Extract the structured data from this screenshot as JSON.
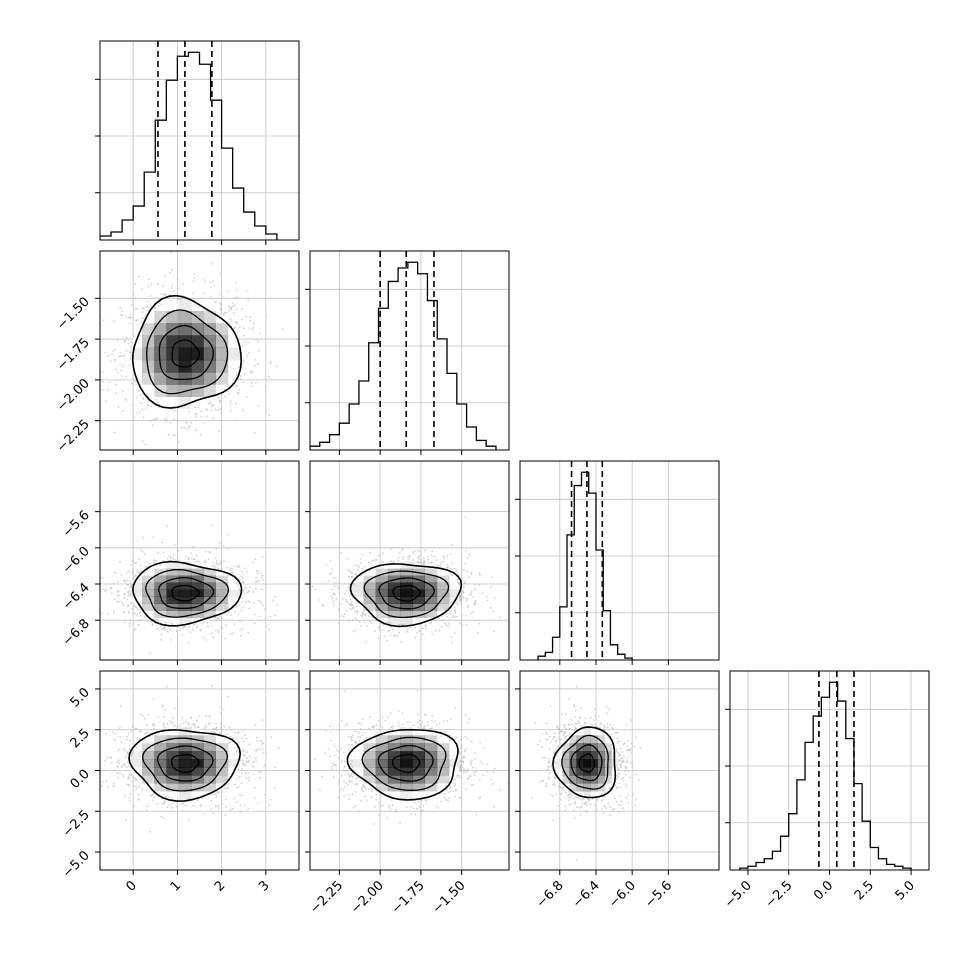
{
  "chart_data": {
    "type": "corner",
    "title": "",
    "grid": true,
    "colors": {
      "histogram": "#000000",
      "contour": "#000000",
      "density": "#000000",
      "scatter": "#bdbdbd",
      "grid": "#c0c0c0"
    },
    "parameters": [
      {
        "label": "",
        "range": [
          -0.75,
          3.75
        ],
        "tick_values": [
          0,
          1,
          2,
          3
        ],
        "tick_labels": [
          "0",
          "1",
          "2",
          "3"
        ],
        "quantiles": [
          0.56,
          1.17,
          1.78
        ],
        "histogram": {
          "edges": [
            -0.75,
            -0.5,
            -0.25,
            0.0,
            0.25,
            0.5,
            0.75,
            1.0,
            1.25,
            1.5,
            1.75,
            2.0,
            2.25,
            2.5,
            2.75,
            3.0,
            3.25
          ],
          "counts": [
            2,
            4,
            10,
            17,
            34,
            60,
            80,
            92,
            94,
            88,
            70,
            46,
            26,
            14,
            7,
            3
          ]
        }
      },
      {
        "label": "",
        "range": [
          -2.43,
          -1.21
        ],
        "tick_values": [
          -2.25,
          -2.0,
          -1.75,
          -1.5
        ],
        "tick_labels": [
          "−2.25",
          "−2.00",
          "−1.75",
          "−1.50"
        ],
        "quantiles": [
          -2.0,
          -1.84,
          -1.67
        ],
        "histogram": {
          "edges": [
            -2.43,
            -2.37,
            -2.31,
            -2.25,
            -2.19,
            -2.13,
            -2.07,
            -2.01,
            -1.95,
            -1.89,
            -1.83,
            -1.77,
            -1.71,
            -1.65,
            -1.59,
            -1.53,
            -1.47,
            -1.41,
            -1.35,
            -1.29
          ],
          "counts": [
            2,
            4,
            8,
            14,
            24,
            36,
            56,
            74,
            88,
            95,
            98,
            92,
            78,
            58,
            40,
            24,
            12,
            5,
            2
          ]
        }
      },
      {
        "label": "",
        "range": [
          -7.24,
          -5.04
        ],
        "tick_values": [
          -6.8,
          -6.4,
          -6.0,
          -5.6
        ],
        "tick_labels": [
          "−6.8",
          "−6.4",
          "−6.0",
          "−5.6"
        ],
        "quantiles": [
          -6.67,
          -6.5,
          -6.33
        ],
        "histogram": {
          "edges": [
            -7.04,
            -6.96,
            -6.88,
            -6.8,
            -6.72,
            -6.64,
            -6.56,
            -6.48,
            -6.4,
            -6.32,
            -6.24,
            -6.16,
            -6.08,
            -6.0
          ],
          "counts": [
            2,
            4,
            12,
            28,
            66,
            92,
            99,
            88,
            58,
            26,
            8,
            3,
            1
          ]
        }
      },
      {
        "label": "",
        "range": [
          -6.1,
          6.1
        ],
        "tick_values": [
          -5.0,
          -2.5,
          0.0,
          2.5,
          5.0
        ],
        "tick_labels": [
          "−5.0",
          "−2.5",
          "0.0",
          "2.5",
          "5.0"
        ],
        "quantiles": [
          -0.65,
          0.45,
          1.5
        ],
        "histogram": {
          "edges": [
            -5.5,
            -5.0,
            -4.5,
            -4.0,
            -3.5,
            -3.0,
            -2.5,
            -2.0,
            -1.5,
            -1.0,
            -0.5,
            0.0,
            0.5,
            1.0,
            1.5,
            2.0,
            2.5,
            3.0,
            3.5,
            4.0,
            4.5,
            5.0
          ],
          "counts": [
            1,
            2,
            4,
            6,
            10,
            18,
            30,
            48,
            68,
            82,
            92,
            100,
            90,
            70,
            46,
            26,
            12,
            6,
            3,
            2,
            1
          ]
        }
      }
    ],
    "correlations": [
      [
        1,
        0,
        0,
        0
      ],
      [
        0,
        1,
        0,
        0
      ],
      [
        0,
        0,
        1,
        0
      ],
      [
        0,
        0,
        0,
        1
      ]
    ],
    "contour_levels": [
      0.5,
      1.0,
      1.5,
      2.0
    ],
    "samples_shown": 1500
  }
}
